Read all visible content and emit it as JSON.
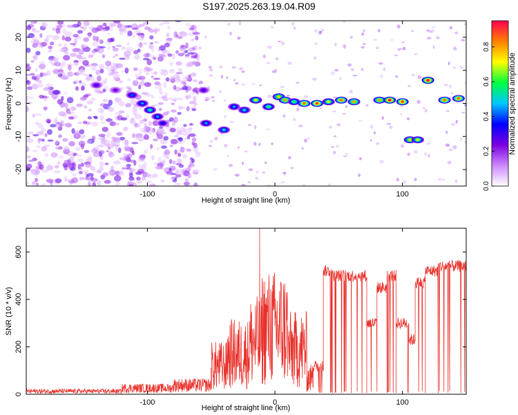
{
  "chart_data": [
    {
      "type": "heatmap",
      "title": "S197.2025.263.19.04.R09",
      "xlabel": "Height of straight line (km)",
      "ylabel": "Frequency (Hz)",
      "xlim": [
        -195,
        150
      ],
      "ylim": [
        -25,
        25
      ],
      "xticks": [
        -100,
        0,
        100
      ],
      "yticks": [
        -20,
        -10,
        0,
        10,
        20
      ],
      "colorbar": {
        "label": "Normalized spectral amplitude",
        "range": [
          0,
          0.95
        ],
        "ticks": [
          0,
          0.2,
          0.4,
          0.6,
          0.8
        ],
        "colormap": [
          "#ffffff",
          "#cc88ff",
          "#7a00e0",
          "#0000ff",
          "#00c8ff",
          "#00ff40",
          "#ffff00",
          "#ff8000",
          "#ff0050"
        ]
      },
      "noise_region": [
        -195,
        -60
      ],
      "ridge": [
        {
          "x": -140,
          "y": 5.5,
          "a": 0.3
        },
        {
          "x": -125,
          "y": 4,
          "a": 0.25
        },
        {
          "x": -112,
          "y": 2.5,
          "a": 0.4
        },
        {
          "x": -104,
          "y": 0,
          "a": 0.45
        },
        {
          "x": -98,
          "y": -2,
          "a": 0.55
        },
        {
          "x": -92,
          "y": -4,
          "a": 0.45
        },
        {
          "x": -88,
          "y": -6,
          "a": 0.35
        },
        {
          "x": -56,
          "y": 4,
          "a": 0.3
        },
        {
          "x": -54,
          "y": -6,
          "a": 0.45
        },
        {
          "x": -40,
          "y": -8,
          "a": 0.5
        },
        {
          "x": -32,
          "y": -1,
          "a": 0.45
        },
        {
          "x": -24,
          "y": -2,
          "a": 0.5
        },
        {
          "x": -15,
          "y": 1,
          "a": 0.7
        },
        {
          "x": -5,
          "y": -1,
          "a": 0.6
        },
        {
          "x": 3,
          "y": 2,
          "a": 0.75
        },
        {
          "x": 8,
          "y": 1,
          "a": 0.8
        },
        {
          "x": 15,
          "y": 0.5,
          "a": 0.6
        },
        {
          "x": 23,
          "y": 0,
          "a": 0.85
        },
        {
          "x": 33,
          "y": 0,
          "a": 0.9
        },
        {
          "x": 42,
          "y": 0.5,
          "a": 0.7
        },
        {
          "x": 52,
          "y": 1,
          "a": 0.85
        },
        {
          "x": 62,
          "y": 0.5,
          "a": 0.8
        },
        {
          "x": 82,
          "y": 1,
          "a": 0.8
        },
        {
          "x": 90,
          "y": 1,
          "a": 0.95
        },
        {
          "x": 100,
          "y": 0.5,
          "a": 0.9
        },
        {
          "x": 106,
          "y": -11,
          "a": 0.75
        },
        {
          "x": 112,
          "y": -11,
          "a": 0.7
        },
        {
          "x": 120,
          "y": 7,
          "a": 0.95
        },
        {
          "x": 133,
          "y": 1,
          "a": 0.85
        },
        {
          "x": 144,
          "y": 1.5,
          "a": 0.85
        }
      ]
    },
    {
      "type": "line",
      "xlabel": "Height of straight line (km)",
      "ylabel": "SNR (10 * v/v)",
      "xlim": [
        -195,
        150
      ],
      "ylim": [
        0,
        700
      ],
      "xticks": [
        -100,
        0,
        100
      ],
      "yticks": [
        0,
        200,
        400,
        600
      ],
      "color": "#e8302a",
      "segments": [
        {
          "from": -195,
          "to": -120,
          "level": 15
        },
        {
          "from": -120,
          "to": -80,
          "level": 30
        },
        {
          "from": -80,
          "to": -50,
          "level": 45
        },
        {
          "from": -50,
          "to": -38,
          "level": 140
        },
        {
          "from": -38,
          "to": -20,
          "level": 200
        },
        {
          "from": -20,
          "to": -10,
          "level": 260
        },
        {
          "from": -10,
          "to": 10,
          "level": 330
        },
        {
          "from": 10,
          "to": 25,
          "level": 220
        },
        {
          "from": 25,
          "to": 30,
          "level": 80
        },
        {
          "from": 30,
          "to": 38,
          "level": 120
        },
        {
          "from": 38,
          "to": 45,
          "level": 520
        },
        {
          "from": 45,
          "to": 60,
          "level": 500
        },
        {
          "from": 60,
          "to": 72,
          "level": 500
        },
        {
          "from": 72,
          "to": 80,
          "level": 300
        },
        {
          "from": 80,
          "to": 88,
          "level": 450
        },
        {
          "from": 88,
          "to": 95,
          "level": 500
        },
        {
          "from": 95,
          "to": 105,
          "level": 300
        },
        {
          "from": 105,
          "to": 110,
          "level": 230
        },
        {
          "from": 110,
          "to": 118,
          "level": 470
        },
        {
          "from": 118,
          "to": 128,
          "level": 520
        },
        {
          "from": 128,
          "to": 150,
          "level": 540
        }
      ],
      "spike": {
        "x": -12,
        "value": 700
      }
    }
  ]
}
